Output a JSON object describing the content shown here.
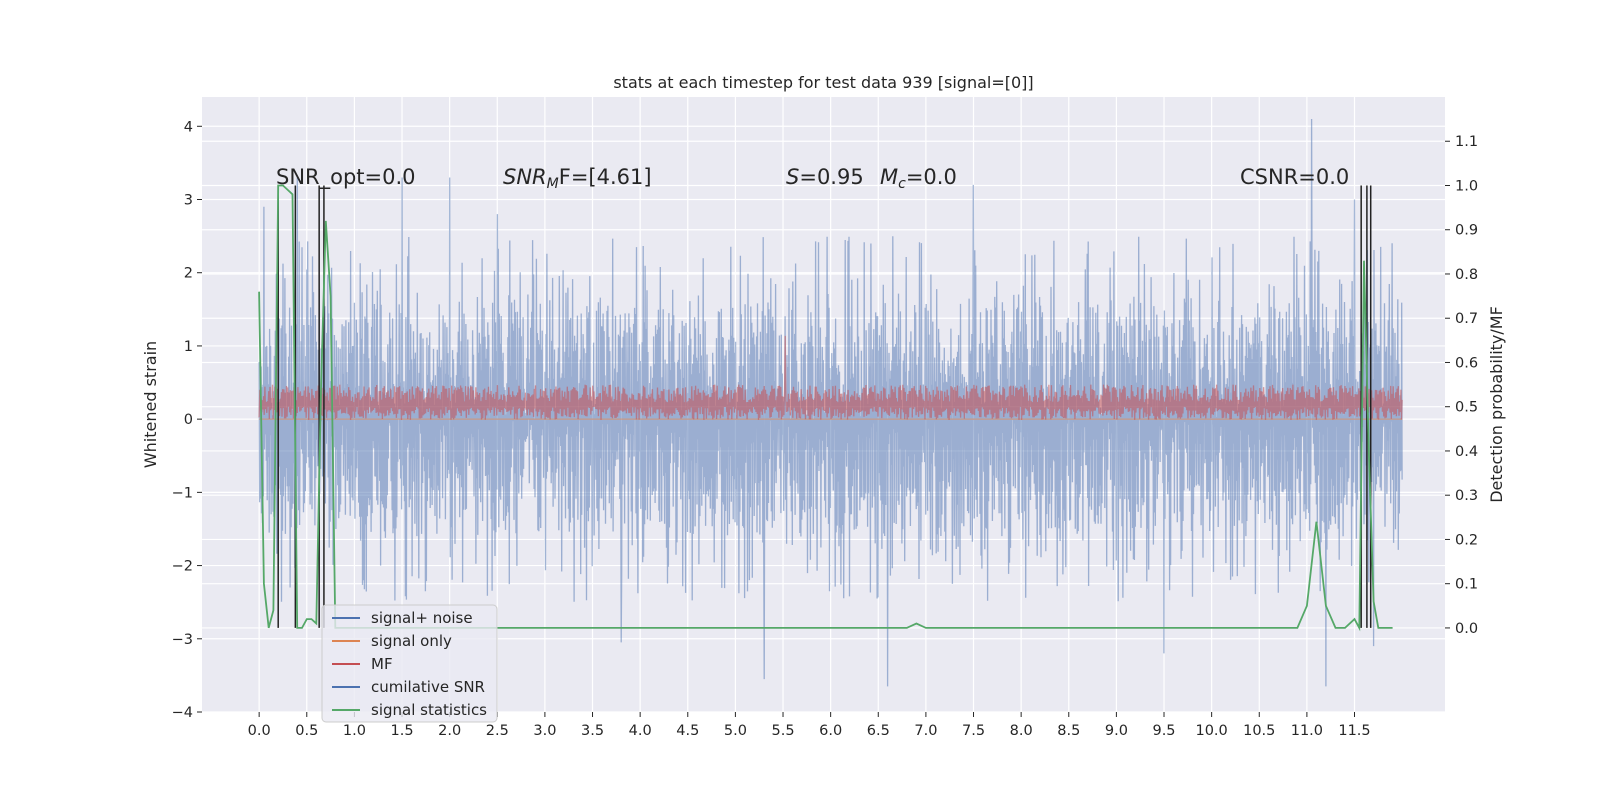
{
  "chart_data": {
    "type": "line",
    "title": "stats at each timestep for test data 939 [signal=[0]]",
    "xlabel": "",
    "ylabel_left": "Whitened strain",
    "ylabel_right": "Detection probability/MF",
    "xlim": [
      -0.6,
      12.45
    ],
    "ylim_left": [
      -4.0,
      4.4
    ],
    "ylim_right": [
      -0.19,
      1.2
    ],
    "x_ticks": [
      "0.0",
      "0.5",
      "1.0",
      "1.5",
      "2.0",
      "2.5",
      "3.0",
      "3.5",
      "4.0",
      "4.5",
      "5.0",
      "5.5",
      "6.0",
      "6.5",
      "7.0",
      "7.5",
      "8.0",
      "8.5",
      "9.0",
      "9.5",
      "10.0",
      "10.5",
      "11.0",
      "11.5"
    ],
    "y_ticks_left": [
      "−4",
      "−3",
      "−2",
      "−1",
      "0",
      "1",
      "2",
      "3",
      "4"
    ],
    "y_ticks_right": [
      "0.0",
      "0.1",
      "0.2",
      "0.3",
      "0.4",
      "0.5",
      "0.6",
      "0.7",
      "0.8",
      "0.9",
      "1.0",
      "1.1"
    ],
    "grid": true,
    "annotations": {
      "snr_opt": "SNR_opt=0.0",
      "snr_mf_sym": "SNR",
      "snr_mf_sub": "M",
      "snr_mf_rest": "F=[4.61]",
      "s_sym": "S",
      "s_val": "=0.95",
      "mc_sym": "M",
      "mc_sub": "c",
      "mc_val": "=0.0",
      "csnr": "CSNR=0.0"
    },
    "series": [
      {
        "name": "signal+ noise",
        "color": "#4c72b0",
        "axis": "left",
        "x_range": [
          0.0,
          12.0
        ],
        "envelope": {
          "typical_max": 1.6,
          "typical_min": -1.6,
          "peak_max": 4.1,
          "peak_min": -3.65
        },
        "peaks": [
          [
            0.05,
            2.9
          ],
          [
            0.4,
            3.3
          ],
          [
            1.5,
            3.3
          ],
          [
            2.0,
            3.3
          ],
          [
            2.5,
            2.8
          ],
          [
            7.5,
            3.2
          ],
          [
            11.05,
            4.1
          ],
          [
            11.5,
            3.0
          ],
          [
            3.8,
            -3.05
          ],
          [
            5.3,
            -3.55
          ],
          [
            6.6,
            -3.65
          ],
          [
            9.5,
            -3.2
          ],
          [
            11.2,
            -3.65
          ],
          [
            11.7,
            -3.1
          ]
        ]
      },
      {
        "name": "signal only",
        "color": "#dd8452",
        "axis": "left",
        "x": [
          0.0,
          12.0
        ],
        "y": [
          0.0,
          0.0
        ]
      },
      {
        "name": "MF",
        "color": "#c44e52",
        "axis": "right",
        "x_range": [
          0.0,
          12.0
        ],
        "envelope": {
          "typical_max": 0.55,
          "typical_min": 0.47,
          "peak_max": 0.66
        }
      },
      {
        "name": "cumilative SNR",
        "color": "#4c72b0",
        "axis": "right",
        "x": [],
        "y": []
      },
      {
        "name": "signal statistics",
        "color": "#55a868",
        "axis": "right",
        "x": [
          0.0,
          0.05,
          0.1,
          0.15,
          0.2,
          0.25,
          0.3,
          0.35,
          0.4,
          0.45,
          0.5,
          0.55,
          0.6,
          0.65,
          0.7,
          0.75,
          0.8,
          0.85,
          1.0,
          2.0,
          3.0,
          4.0,
          5.0,
          6.0,
          6.5,
          6.8,
          6.9,
          7.0,
          7.2,
          8.0,
          9.0,
          10.0,
          10.9,
          11.0,
          11.1,
          11.2,
          11.3,
          11.4,
          11.5,
          11.55,
          11.6,
          11.65,
          11.7,
          11.75,
          11.8,
          11.9
        ],
        "y": [
          0.76,
          0.1,
          0.0,
          0.04,
          1.0,
          1.0,
          0.99,
          0.98,
          0.0,
          0.0,
          0.02,
          0.02,
          0.01,
          0.55,
          0.92,
          0.75,
          0.0,
          0.0,
          0.0,
          0.0,
          0.0,
          0.0,
          0.0,
          0.0,
          0.0,
          0.0,
          0.01,
          0.0,
          0.0,
          0.0,
          0.0,
          0.0,
          0.0,
          0.05,
          0.24,
          0.05,
          0.0,
          0.0,
          0.02,
          0.0,
          0.83,
          0.4,
          0.06,
          0.0,
          0.0,
          0.0
        ]
      }
    ],
    "vertical_lines": {
      "color": "#222222",
      "x": [
        0.2,
        0.38,
        0.63,
        0.68,
        11.57,
        11.63,
        11.67
      ],
      "y_top": 1.0,
      "y_bottom": 0.0
    },
    "legend": {
      "placement": "lower-left",
      "entries": [
        {
          "label": "signal+ noise",
          "color": "#4c72b0"
        },
        {
          "label": "signal only",
          "color": "#dd8452"
        },
        {
          "label": "MF",
          "color": "#c44e52"
        },
        {
          "label": "cumilative SNR",
          "color": "#4c72b0"
        },
        {
          "label": "signal statistics",
          "color": "#55a868"
        }
      ]
    }
  }
}
